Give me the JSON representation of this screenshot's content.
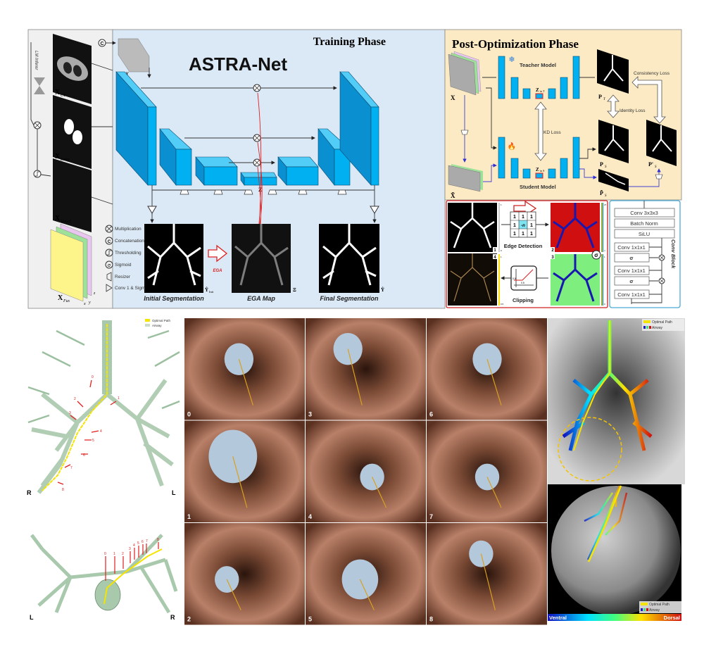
{
  "training": {
    "phase_title": "Training Phase",
    "net_title": "ASTRA-Net",
    "lm_inferer": "LM Inferer",
    "inputs": {
      "x_ct": {
        "main": "X",
        "sub": "CT"
      },
      "x_lung": {
        "main": "X",
        "sub": "Lung"
      },
      "x_vessel": {
        "main": "X",
        "sub": "Vessel"
      },
      "x_fus": {
        "main": "X",
        "sub": "Fus"
      },
      "axes": [
        "x",
        "y",
        "z"
      ]
    },
    "concat_symbol": "C",
    "x_label": "X",
    "z_label": "Z",
    "legend": [
      {
        "icon": "multiplication-icon",
        "label": "Multiplication"
      },
      {
        "icon": "concatenation-icon",
        "label": "Concatenation"
      },
      {
        "icon": "thresholding-icon",
        "label": "Thresholding"
      },
      {
        "icon": "sigmoid-icon",
        "label": "Sigmoid"
      },
      {
        "icon": "resizer-icon",
        "label": "Resizer"
      },
      {
        "icon": "conv-sigmoid-icon",
        "label": "Conv 1 & Sigmoid"
      }
    ],
    "outputs": {
      "initial": {
        "caption": "Initial Segmentation",
        "symbol": "Ŷ",
        "sub": "Init"
      },
      "ega": {
        "caption": "EGA Map",
        "symbol": "Ξ",
        "arrow_label": "EGA"
      },
      "final": {
        "caption": "Final Segmentation",
        "symbol": "Ŷ"
      }
    }
  },
  "post_optimization": {
    "phase_title": "Post-Optimization Phase",
    "x_label": "X",
    "x_tilde_label": "X̃",
    "teacher_label": "Teacher Model",
    "student_label": "Student Model",
    "z_teacher": {
      "main": "Z",
      "sub": "in T"
    },
    "z_student": {
      "main": "Z",
      "sub": "in S"
    },
    "kd_loss": "KD Loss",
    "consistency_loss": "Consistency Loss",
    "identity_loss": "Identity Loss",
    "p_t": {
      "main": "P",
      "sub": "T"
    },
    "p_s": {
      "main": "P",
      "sub": "S"
    },
    "p_s_tilde": {
      "main": "P̃",
      "sub": "S"
    },
    "p_s_prime": {
      "main": "P'",
      "sub": "S"
    },
    "ega_steps": {
      "edge_detection": "Edge Detection",
      "clipping": "Clipping",
      "kernel": [
        "1",
        "1",
        "1",
        "1",
        "-n",
        "1",
        "1",
        "1",
        "1"
      ],
      "panel_numbers": [
        "1",
        "2",
        "3",
        "4"
      ],
      "sigma": "σ",
      "clip_ticks": [
        "0.5",
        "0.5"
      ],
      "colorbar_ticks": [
        "1",
        "0",
        "27",
        "n",
        "1",
        "0",
        "1",
        "0.5"
      ]
    },
    "conv_block": {
      "title": "Conv Block",
      "layers": [
        "Conv 3x3x3",
        "Batch Norm",
        "SiLU",
        "Conv 1x1x1",
        "σ",
        "Conv 1x1x1",
        "σ",
        "Conv 1x1x1"
      ]
    }
  },
  "navigation": {
    "legend": {
      "optimal_path": "Optimal Path",
      "airway": "Airway"
    },
    "top_view": {
      "left": "R",
      "right": "L",
      "markers": [
        "0",
        "1",
        "2",
        "3",
        "4",
        "5",
        "6",
        "7",
        "8"
      ]
    },
    "bottom_view": {
      "left": "L",
      "right": "R",
      "markers": [
        "0",
        "1",
        "2",
        "3",
        "4",
        "5",
        "6",
        "7",
        "8"
      ]
    },
    "endoscopy_frames": [
      "0",
      "1",
      "2",
      "3",
      "4",
      "5",
      "6",
      "7",
      "8"
    ],
    "colorbar": {
      "left": "Ventral",
      "right": "Dorsal"
    },
    "colors": {
      "optimal_path": "#f5e400",
      "airway": "#a9c9ad",
      "marker": "#e02020",
      "tissue": "#b77a5c"
    }
  }
}
